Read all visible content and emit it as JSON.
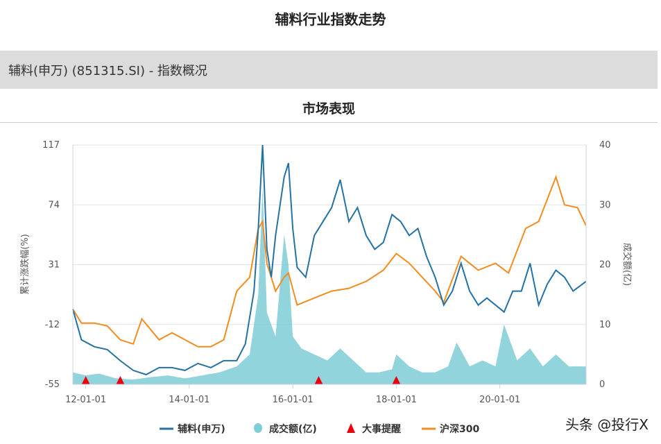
{
  "header": {
    "title": "辅料行业指数走势",
    "overview": "辅料(申万) (851315.SI) - 指数概况",
    "section": "市场表现"
  },
  "watermark": "头条 @投行X",
  "chart_data": {
    "type": "line",
    "ylabel": "累计涨跌幅(%)",
    "y2label": "成交额(亿)",
    "ylim": [
      -55,
      117
    ],
    "yticks": [
      "117",
      "74",
      "31",
      "-12",
      "-55"
    ],
    "y2lim": [
      0,
      40
    ],
    "y2ticks": [
      "40",
      "30",
      "20",
      "10",
      "0"
    ],
    "xlim": [
      "2011-10",
      "2021-09"
    ],
    "xticks": [
      {
        "date": "2012-01",
        "label": "12-01-01"
      },
      {
        "date": "2014-01",
        "label": "14-01-01"
      },
      {
        "date": "2016-01",
        "label": "16-01-01"
      },
      {
        "date": "2018-01",
        "label": "18-01-01"
      },
      {
        "date": "2020-01",
        "label": "20-01-01"
      }
    ],
    "grid": true,
    "legend_position": "bottom",
    "colors": {
      "fuliao": "#2471a3",
      "volume": "#7fcdd6",
      "events": "#e8000b",
      "hs300": "#f28c1e"
    },
    "series": [
      {
        "name": "辅料(申万)",
        "data": [
          [
            "2011-10",
            -1
          ],
          [
            "2011-12",
            -23
          ],
          [
            "2012-03",
            -28
          ],
          [
            "2012-06",
            -30
          ],
          [
            "2012-09",
            -38
          ],
          [
            "2012-12",
            -45
          ],
          [
            "2013-03",
            -48
          ],
          [
            "2013-06",
            -43
          ],
          [
            "2013-09",
            -43
          ],
          [
            "2013-12",
            -45
          ],
          [
            "2014-03",
            -40
          ],
          [
            "2014-06",
            -43
          ],
          [
            "2014-09",
            -38
          ],
          [
            "2014-12",
            -38
          ],
          [
            "2015-02",
            -26
          ],
          [
            "2015-04",
            12
          ],
          [
            "2015-05",
            57
          ],
          [
            "2015-06",
            117
          ],
          [
            "2015-07",
            42
          ],
          [
            "2015-08",
            22
          ],
          [
            "2015-09",
            52
          ],
          [
            "2015-11",
            94
          ],
          [
            "2015-12",
            104
          ],
          [
            "2016-01",
            57
          ],
          [
            "2016-02",
            29
          ],
          [
            "2016-04",
            22
          ],
          [
            "2016-06",
            52
          ],
          [
            "2016-08",
            62
          ],
          [
            "2016-10",
            72
          ],
          [
            "2016-12",
            92
          ],
          [
            "2017-02",
            62
          ],
          [
            "2017-04",
            72
          ],
          [
            "2017-06",
            52
          ],
          [
            "2017-08",
            42
          ],
          [
            "2017-10",
            47
          ],
          [
            "2017-12",
            67
          ],
          [
            "2018-02",
            62
          ],
          [
            "2018-04",
            52
          ],
          [
            "2018-06",
            57
          ],
          [
            "2018-08",
            37
          ],
          [
            "2018-10",
            22
          ],
          [
            "2018-12",
            2
          ],
          [
            "2019-02",
            12
          ],
          [
            "2019-04",
            32
          ],
          [
            "2019-06",
            12
          ],
          [
            "2019-08",
            2
          ],
          [
            "2019-10",
            7
          ],
          [
            "2019-12",
            2
          ],
          [
            "2020-02",
            -3
          ],
          [
            "2020-04",
            12
          ],
          [
            "2020-06",
            12
          ],
          [
            "2020-08",
            32
          ],
          [
            "2020-10",
            2
          ],
          [
            "2020-12",
            17
          ],
          [
            "2021-02",
            27
          ],
          [
            "2021-04",
            22
          ],
          [
            "2021-06",
            12
          ],
          [
            "2021-09",
            19
          ]
        ]
      },
      {
        "name": "沪深300",
        "data": [
          [
            "2011-10",
            -1
          ],
          [
            "2011-12",
            -11
          ],
          [
            "2012-03",
            -11
          ],
          [
            "2012-06",
            -13
          ],
          [
            "2012-09",
            -23
          ],
          [
            "2012-12",
            -26
          ],
          [
            "2013-02",
            -8
          ],
          [
            "2013-06",
            -23
          ],
          [
            "2013-09",
            -18
          ],
          [
            "2013-12",
            -23
          ],
          [
            "2014-03",
            -28
          ],
          [
            "2014-06",
            -28
          ],
          [
            "2014-09",
            -23
          ],
          [
            "2014-12",
            12
          ],
          [
            "2015-03",
            22
          ],
          [
            "2015-05",
            57
          ],
          [
            "2015-06",
            62
          ],
          [
            "2015-07",
            32
          ],
          [
            "2015-09",
            12
          ],
          [
            "2015-11",
            22
          ],
          [
            "2015-12",
            25
          ],
          [
            "2016-02",
            2
          ],
          [
            "2016-06",
            7
          ],
          [
            "2016-10",
            12
          ],
          [
            "2017-02",
            14
          ],
          [
            "2017-06",
            19
          ],
          [
            "2017-10",
            27
          ],
          [
            "2018-01",
            39
          ],
          [
            "2018-04",
            32
          ],
          [
            "2018-07",
            22
          ],
          [
            "2018-10",
            12
          ],
          [
            "2018-12",
            4
          ],
          [
            "2019-04",
            37
          ],
          [
            "2019-08",
            27
          ],
          [
            "2019-12",
            32
          ],
          [
            "2020-03",
            25
          ],
          [
            "2020-07",
            57
          ],
          [
            "2020-10",
            62
          ],
          [
            "2021-02",
            94
          ],
          [
            "2021-04",
            74
          ],
          [
            "2021-07",
            72
          ],
          [
            "2021-09",
            59
          ]
        ]
      }
    ],
    "volume": {
      "name": "成交额(亿)",
      "data": [
        [
          "2011-10",
          2
        ],
        [
          "2012-01",
          1.5
        ],
        [
          "2012-04",
          1.8
        ],
        [
          "2012-08",
          1
        ],
        [
          "2012-12",
          0.8
        ],
        [
          "2013-04",
          1.2
        ],
        [
          "2013-08",
          1.5
        ],
        [
          "2013-12",
          1
        ],
        [
          "2014-04",
          1.5
        ],
        [
          "2014-08",
          2
        ],
        [
          "2014-12",
          3
        ],
        [
          "2015-03",
          5
        ],
        [
          "2015-05",
          15
        ],
        [
          "2015-06",
          33
        ],
        [
          "2015-07",
          12
        ],
        [
          "2015-09",
          8
        ],
        [
          "2015-11",
          25
        ],
        [
          "2015-12",
          20
        ],
        [
          "2016-01",
          8
        ],
        [
          "2016-03",
          6
        ],
        [
          "2016-06",
          5
        ],
        [
          "2016-09",
          4
        ],
        [
          "2016-12",
          6
        ],
        [
          "2017-03",
          4
        ],
        [
          "2017-06",
          2
        ],
        [
          "2017-09",
          2
        ],
        [
          "2017-12",
          2.5
        ],
        [
          "2018-01",
          5
        ],
        [
          "2018-04",
          3
        ],
        [
          "2018-07",
          2
        ],
        [
          "2018-10",
          2
        ],
        [
          "2019-01",
          3
        ],
        [
          "2019-03",
          7
        ],
        [
          "2019-06",
          3
        ],
        [
          "2019-09",
          4
        ],
        [
          "2019-12",
          3
        ],
        [
          "2020-02",
          10
        ],
        [
          "2020-05",
          4
        ],
        [
          "2020-08",
          6
        ],
        [
          "2020-11",
          3
        ],
        [
          "2021-02",
          5
        ],
        [
          "2021-05",
          3
        ],
        [
          "2021-09",
          3
        ]
      ]
    },
    "events": {
      "name": "大事提醒",
      "dates": [
        "2012-01",
        "2012-09",
        "2016-07",
        "2018-01"
      ]
    }
  }
}
